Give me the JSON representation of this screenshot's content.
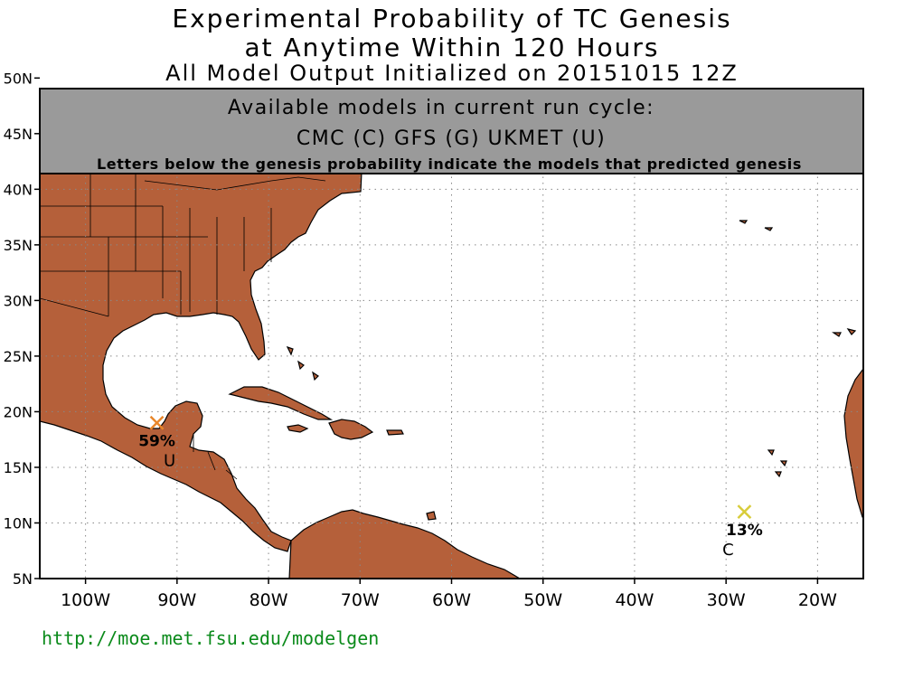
{
  "title": {
    "line1": "Experimental Probability of TC Genesis",
    "line2": "at Anytime Within 120 Hours",
    "line3": "All Model Output Initialized on 20151015 12Z"
  },
  "banner": {
    "heading": "Available models in current run cycle:",
    "models": "CMC (C) GFS (G)  UKMET (U)",
    "note": "Letters below the genesis probability indicate the models that predicted genesis"
  },
  "map": {
    "lon_range": [
      -105,
      -15
    ],
    "lat_range": [
      5,
      51
    ],
    "land_color": "#b5603a",
    "grid_style": "dotted",
    "lat_ticks": [
      {
        "lat": 50,
        "label": "50N"
      },
      {
        "lat": 45,
        "label": "45N"
      },
      {
        "lat": 40,
        "label": "40N"
      },
      {
        "lat": 35,
        "label": "35N"
      },
      {
        "lat": 30,
        "label": "30N"
      },
      {
        "lat": 25,
        "label": "25N"
      },
      {
        "lat": 20,
        "label": "20N"
      },
      {
        "lat": 15,
        "label": "15N"
      },
      {
        "lat": 10,
        "label": "10N"
      },
      {
        "lat": 5,
        "label": "5N"
      }
    ],
    "lon_ticks": [
      {
        "lon": -100,
        "label": "100W"
      },
      {
        "lon": -90,
        "label": "90W"
      },
      {
        "lon": -80,
        "label": "80W"
      },
      {
        "lon": -70,
        "label": "70W"
      },
      {
        "lon": -60,
        "label": "60W"
      },
      {
        "lon": -50,
        "label": "50W"
      },
      {
        "lon": -40,
        "label": "40W"
      },
      {
        "lon": -30,
        "label": "30W"
      },
      {
        "lon": -20,
        "label": "20W"
      }
    ]
  },
  "genesis_points": [
    {
      "lon": -92.2,
      "lat": 19.0,
      "probability": "59%",
      "models": "U",
      "color": "#e8862a"
    },
    {
      "lon": -28.0,
      "lat": 11.0,
      "probability": "13%",
      "models": "C",
      "color": "#d8cc3a"
    }
  ],
  "footer": {
    "url": "http://moe.met.fsu.edu/modelgen"
  }
}
